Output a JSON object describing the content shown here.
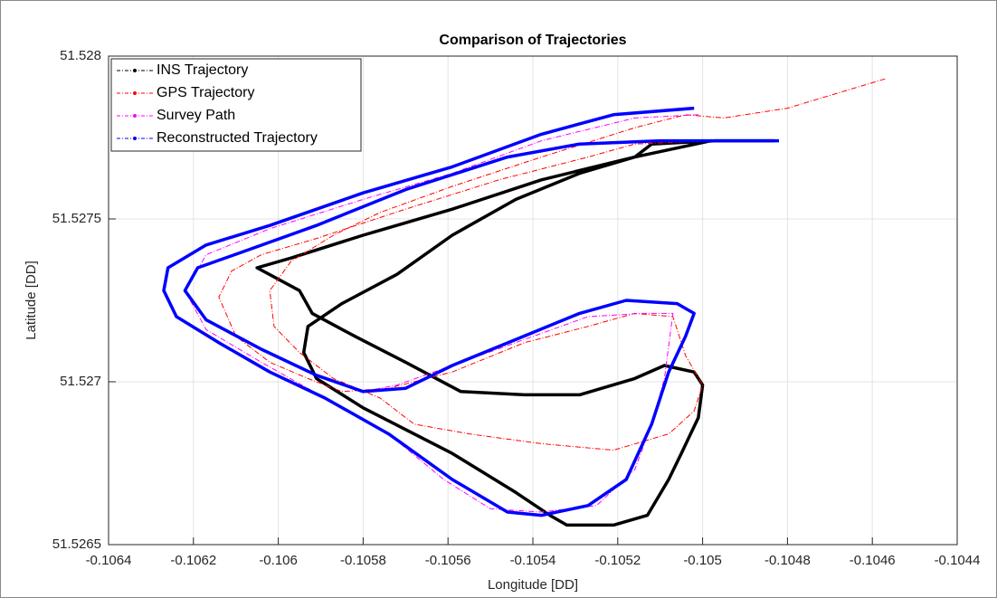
{
  "chart_data": {
    "type": "line",
    "title": "Comparison of Trajectories",
    "x_label": "Longitude [DD]",
    "y_label": "Latitude [DD]",
    "xlim": [
      -0.1064,
      -0.1044
    ],
    "xticks": [
      -0.1064,
      -0.1062,
      -0.106,
      -0.1058,
      -0.1056,
      -0.1054,
      -0.1052,
      -0.105,
      -0.1048,
      -0.1046,
      -0.1044
    ],
    "ylim": [
      51.5265,
      51.528
    ],
    "yticks": [
      51.5265,
      51.527,
      51.5275,
      51.528
    ],
    "grid": true,
    "legend": "top-left",
    "series": [
      {
        "name": "INS Trajectory",
        "color": "#000000",
        "style": "thick",
        "x": [
          -0.10498,
          -0.10516,
          -0.10538,
          -0.10559,
          -0.1058,
          -0.10597,
          -0.10605,
          -0.10595,
          -0.10592,
          -0.10582,
          -0.1057,
          -0.10557,
          -0.10542,
          -0.10529,
          -0.10516,
          -0.10509,
          -0.10502,
          -0.105,
          -0.10501,
          -0.10505,
          -0.10508,
          -0.10513,
          -0.10521,
          -0.10532,
          -0.10536,
          -0.10544,
          -0.10559,
          -0.1058,
          -0.10591,
          -0.10594,
          -0.10593,
          -0.10585,
          -0.10572,
          -0.10559,
          -0.10544,
          -0.10529,
          -0.10516,
          -0.10512,
          -0.10497,
          -0.10483
        ],
        "y": [
          51.52774,
          51.52769,
          51.52762,
          51.52753,
          51.52745,
          51.52738,
          51.52735,
          51.52728,
          51.52721,
          51.52714,
          51.52706,
          51.52697,
          51.52696,
          51.52696,
          51.52701,
          51.52705,
          51.52703,
          51.52699,
          51.52689,
          51.52678,
          51.5267,
          51.52659,
          51.52656,
          51.52656,
          51.52659,
          51.52666,
          51.52678,
          51.52692,
          51.52701,
          51.52709,
          51.52717,
          51.52724,
          51.52733,
          51.52745,
          51.52756,
          51.52764,
          51.52769,
          51.52773,
          51.52774,
          51.52774
        ]
      },
      {
        "name": "GPS Trajectory",
        "color": "#ff0000",
        "style": "dashdot",
        "x": [
          -0.10457,
          -0.1048,
          -0.10495,
          -0.10504,
          -0.10516,
          -0.10538,
          -0.10559,
          -0.10576,
          -0.10587,
          -0.10597,
          -0.10602,
          -0.10601,
          -0.10595,
          -0.10587,
          -0.10576,
          -0.10568,
          -0.10555,
          -0.10538,
          -0.10521,
          -0.10508,
          -0.10502,
          -0.105,
          -0.10504,
          -0.10507,
          -0.10516,
          -0.10527,
          -0.10542,
          -0.10559,
          -0.10574,
          -0.10585,
          -0.10593,
          -0.10602,
          -0.1061,
          -0.10614,
          -0.10611,
          -0.10604,
          -0.10591,
          -0.1057,
          -0.10548,
          -0.10527,
          -0.10516,
          -0.10497
        ],
        "y": [
          51.52793,
          51.52784,
          51.52781,
          51.52782,
          51.52778,
          51.52769,
          51.5276,
          51.52752,
          51.52745,
          51.52737,
          51.52728,
          51.52717,
          51.52709,
          51.52701,
          51.52695,
          51.52687,
          51.52684,
          51.52681,
          51.52679,
          51.52684,
          51.52691,
          51.52699,
          51.52708,
          51.5272,
          51.52721,
          51.52717,
          51.52712,
          51.52703,
          51.52698,
          51.52697,
          51.52701,
          51.52706,
          51.52714,
          51.52726,
          51.52734,
          51.52739,
          51.52744,
          51.52753,
          51.52762,
          51.52769,
          51.52773,
          51.52774
        ]
      },
      {
        "name": "Survey Path",
        "color": "#ff00ff",
        "style": "dashdot",
        "x": [
          -0.10501,
          -0.10516,
          -0.10538,
          -0.10559,
          -0.1058,
          -0.10602,
          -0.10617,
          -0.10622,
          -0.10617,
          -0.10604,
          -0.10589,
          -0.10574,
          -0.10561,
          -0.1055,
          -0.10538,
          -0.10525,
          -0.10516,
          -0.10512,
          -0.10509,
          -0.10507,
          -0.10514,
          -0.10527,
          -0.10542,
          -0.10559,
          -0.10572,
          -0.1058
        ],
        "y": [
          51.52782,
          51.52781,
          51.52774,
          51.52764,
          51.52756,
          51.52747,
          51.52739,
          51.52728,
          51.52716,
          51.52706,
          51.52695,
          51.52684,
          51.5267,
          51.52661,
          51.5266,
          51.52662,
          51.52673,
          51.52687,
          51.52701,
          51.52721,
          51.52721,
          51.5272,
          51.52713,
          51.52705,
          51.52699,
          51.52697
        ]
      },
      {
        "name": "Reconstructed Trajectory",
        "color": "#0000ff",
        "style": "thick",
        "x": [
          -0.10502,
          -0.10521,
          -0.10538,
          -0.10559,
          -0.1058,
          -0.10602,
          -0.10617,
          -0.10626,
          -0.10627,
          -0.10624,
          -0.10614,
          -0.10602,
          -0.10589,
          -0.10574,
          -0.10559,
          -0.10546,
          -0.10538,
          -0.10527,
          -0.10518,
          -0.10512,
          -0.10508,
          -0.10504,
          -0.10502,
          -0.10506,
          -0.10518,
          -0.10529,
          -0.10544,
          -0.10559,
          -0.1057,
          -0.1058,
          -0.10591,
          -0.10604,
          -0.10617,
          -0.10622,
          -0.10619,
          -0.10606,
          -0.10591,
          -0.1057,
          -0.10546,
          -0.10529,
          -0.1051,
          -0.10495,
          -0.10482
        ],
        "y": [
          51.52784,
          51.52782,
          51.52776,
          51.52766,
          51.52758,
          51.52748,
          51.52742,
          51.52735,
          51.52728,
          51.5272,
          51.52712,
          51.52703,
          51.52695,
          51.52684,
          51.5267,
          51.5266,
          51.52659,
          51.52662,
          51.5267,
          51.52687,
          51.52703,
          51.52714,
          51.52721,
          51.52724,
          51.52725,
          51.52721,
          51.52713,
          51.52705,
          51.52698,
          51.52697,
          51.52702,
          51.5271,
          51.52719,
          51.52728,
          51.52735,
          51.52741,
          51.52748,
          51.52759,
          51.52769,
          51.52773,
          51.52774,
          51.52774,
          51.52774
        ]
      }
    ]
  }
}
